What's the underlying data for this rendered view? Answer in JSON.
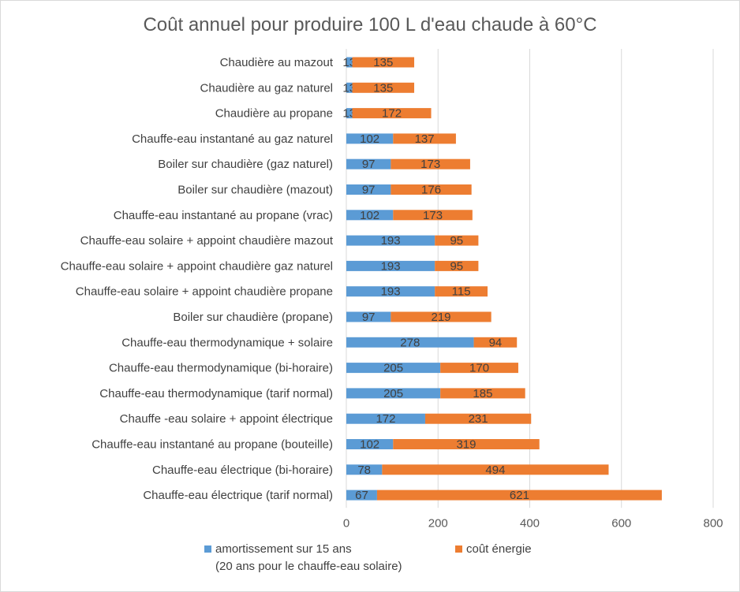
{
  "chart_data": {
    "type": "bar",
    "orientation": "horizontal",
    "stacked": true,
    "title": "Coût annuel pour produire 100 L d'eau chaude à 60°C",
    "xlim": [
      0,
      800
    ],
    "xticks": [
      "0",
      "200",
      "400",
      "600",
      "800"
    ],
    "grid": true,
    "legend_position": "bottom",
    "categories": [
      "Chaudière au mazout",
      "Chaudière au gaz naturel",
      "Chaudière au propane",
      "Chauffe-eau instantané au gaz naturel",
      "Boiler sur chaudière (gaz naturel)",
      "Boiler sur chaudière (mazout)",
      "Chauffe-eau instantané au propane (vrac)",
      "Chauffe-eau solaire + appoint chaudière mazout",
      "Chauffe-eau solaire + appoint chaudière gaz naturel",
      "Chauffe-eau solaire + appoint chaudière propane",
      "Boiler sur chaudière (propane)",
      "Chauffe-eau thermodynamique + solaire",
      "Chauffe-eau thermodynamique (bi-horaire)",
      "Chauffe-eau thermodynamique (tarif normal)",
      "Chauffe -eau solaire + appoint électrique",
      "Chauffe-eau instantané au propane (bouteille)",
      "Chauffe-eau électrique (bi-horaire)",
      "Chauffe-eau électrique (tarif normal)"
    ],
    "series": [
      {
        "name": "amortissement sur 15 ans\n(20 ans pour le chauffe-eau solaire)",
        "name_line1": "amortissement sur 15 ans",
        "name_line2": "(20 ans pour le chauffe-eau solaire)",
        "color": "#5b9bd5",
        "values": [
          13,
          13,
          13,
          102,
          97,
          97,
          102,
          193,
          193,
          193,
          97,
          278,
          205,
          205,
          172,
          102,
          78,
          67
        ]
      },
      {
        "name": "coût énergie",
        "color": "#ed7d31",
        "values": [
          135,
          135,
          172,
          137,
          173,
          176,
          173,
          95,
          95,
          115,
          219,
          94,
          170,
          185,
          231,
          319,
          494,
          621
        ]
      }
    ]
  }
}
